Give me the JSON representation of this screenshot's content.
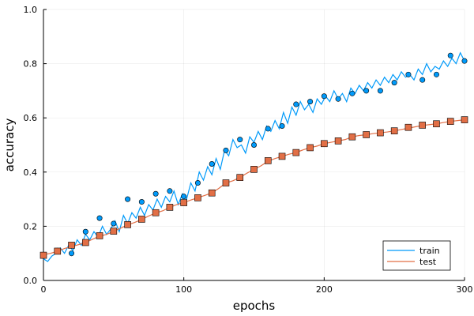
{
  "chart_data": {
    "type": "line",
    "title": "",
    "xlabel": "epochs",
    "ylabel": "accuracy",
    "xlim": [
      0,
      300
    ],
    "ylim": [
      0,
      1.0
    ],
    "xticks": [
      0,
      100,
      200,
      300
    ],
    "xtick_labels": [
      "0",
      "100",
      "200",
      "300"
    ],
    "yticks": [
      0.0,
      0.2,
      0.4,
      0.6,
      0.8,
      1.0
    ],
    "ytick_labels": [
      "0.0",
      "0.2",
      "0.4",
      "0.6",
      "0.8",
      "1.0"
    ],
    "grid": true,
    "legend_position": "bottom-right",
    "series": [
      {
        "name": "train",
        "color": "#009AFA",
        "marker": "circle",
        "line_x": [
          0,
          3,
          6,
          9,
          12,
          15,
          18,
          21,
          24,
          27,
          30,
          33,
          36,
          39,
          42,
          45,
          48,
          51,
          54,
          57,
          60,
          63,
          66,
          69,
          72,
          75,
          78,
          81,
          84,
          87,
          90,
          93,
          96,
          99,
          102,
          105,
          108,
          111,
          114,
          117,
          120,
          123,
          126,
          129,
          132,
          135,
          138,
          141,
          144,
          147,
          150,
          153,
          156,
          159,
          162,
          165,
          168,
          171,
          174,
          177,
          180,
          183,
          186,
          189,
          192,
          195,
          198,
          201,
          204,
          207,
          210,
          213,
          216,
          219,
          222,
          225,
          228,
          231,
          234,
          237,
          240,
          243,
          246,
          249,
          252,
          255,
          258,
          261,
          264,
          267,
          270,
          273,
          276,
          279,
          282,
          285,
          288,
          291,
          294,
          297,
          300
        ],
        "line_y": [
          0.08,
          0.07,
          0.09,
          0.1,
          0.12,
          0.1,
          0.13,
          0.11,
          0.15,
          0.13,
          0.17,
          0.15,
          0.18,
          0.16,
          0.2,
          0.17,
          0.19,
          0.22,
          0.18,
          0.24,
          0.21,
          0.25,
          0.23,
          0.27,
          0.24,
          0.28,
          0.26,
          0.3,
          0.27,
          0.31,
          0.29,
          0.33,
          0.28,
          0.32,
          0.3,
          0.36,
          0.33,
          0.4,
          0.37,
          0.42,
          0.39,
          0.45,
          0.41,
          0.48,
          0.46,
          0.52,
          0.49,
          0.5,
          0.47,
          0.53,
          0.51,
          0.55,
          0.52,
          0.57,
          0.55,
          0.59,
          0.56,
          0.62,
          0.58,
          0.64,
          0.61,
          0.66,
          0.63,
          0.65,
          0.62,
          0.67,
          0.65,
          0.68,
          0.66,
          0.7,
          0.67,
          0.69,
          0.66,
          0.71,
          0.69,
          0.72,
          0.7,
          0.73,
          0.71,
          0.74,
          0.72,
          0.75,
          0.73,
          0.76,
          0.74,
          0.77,
          0.75,
          0.76,
          0.74,
          0.78,
          0.76,
          0.8,
          0.77,
          0.79,
          0.78,
          0.81,
          0.79,
          0.82,
          0.8,
          0.84,
          0.81
        ],
        "points_x": [
          0,
          10,
          20,
          30,
          40,
          50,
          60,
          70,
          80,
          90,
          100,
          110,
          120,
          130,
          140,
          150,
          160,
          170,
          180,
          190,
          200,
          210,
          220,
          230,
          240,
          250,
          260,
          270,
          280,
          290,
          300
        ],
        "points_y": [
          0.09,
          0.11,
          0.1,
          0.18,
          0.23,
          0.21,
          0.3,
          0.29,
          0.32,
          0.33,
          0.31,
          0.36,
          0.43,
          0.48,
          0.52,
          0.5,
          0.56,
          0.57,
          0.65,
          0.66,
          0.68,
          0.67,
          0.69,
          0.7,
          0.7,
          0.73,
          0.76,
          0.74,
          0.76,
          0.83,
          0.81
        ]
      },
      {
        "name": "test",
        "color": "#E26F46",
        "marker": "square",
        "line_x": [
          0,
          5,
          10,
          15,
          20,
          25,
          30,
          35,
          40,
          45,
          50,
          55,
          60,
          65,
          70,
          75,
          80,
          85,
          90,
          95,
          100,
          105,
          110,
          115,
          120,
          125,
          130,
          135,
          140,
          145,
          150,
          155,
          160,
          165,
          170,
          175,
          180,
          185,
          190,
          195,
          200,
          205,
          210,
          215,
          220,
          225,
          230,
          235,
          240,
          245,
          250,
          255,
          260,
          265,
          270,
          275,
          280,
          285,
          290,
          295,
          300
        ],
        "line_y": [
          0.095,
          0.1,
          0.108,
          0.118,
          0.125,
          0.132,
          0.14,
          0.152,
          0.163,
          0.17,
          0.181,
          0.193,
          0.205,
          0.214,
          0.225,
          0.238,
          0.249,
          0.257,
          0.27,
          0.28,
          0.287,
          0.297,
          0.305,
          0.314,
          0.323,
          0.34,
          0.36,
          0.368,
          0.38,
          0.396,
          0.41,
          0.423,
          0.44,
          0.45,
          0.458,
          0.466,
          0.472,
          0.482,
          0.49,
          0.496,
          0.505,
          0.51,
          0.515,
          0.52,
          0.53,
          0.535,
          0.538,
          0.542,
          0.545,
          0.548,
          0.552,
          0.557,
          0.562,
          0.567,
          0.572,
          0.575,
          0.578,
          0.583,
          0.587,
          0.59,
          0.593
        ],
        "points_x": [
          0,
          10,
          20,
          30,
          40,
          50,
          60,
          70,
          80,
          90,
          100,
          110,
          120,
          130,
          140,
          150,
          160,
          170,
          180,
          190,
          200,
          210,
          220,
          230,
          240,
          250,
          260,
          270,
          280,
          290,
          300
        ],
        "points_y": [
          0.093,
          0.108,
          0.13,
          0.14,
          0.165,
          0.182,
          0.206,
          0.226,
          0.25,
          0.27,
          0.287,
          0.305,
          0.323,
          0.36,
          0.38,
          0.41,
          0.442,
          0.458,
          0.472,
          0.49,
          0.505,
          0.515,
          0.53,
          0.538,
          0.545,
          0.552,
          0.565,
          0.573,
          0.578,
          0.587,
          0.593
        ]
      }
    ]
  }
}
